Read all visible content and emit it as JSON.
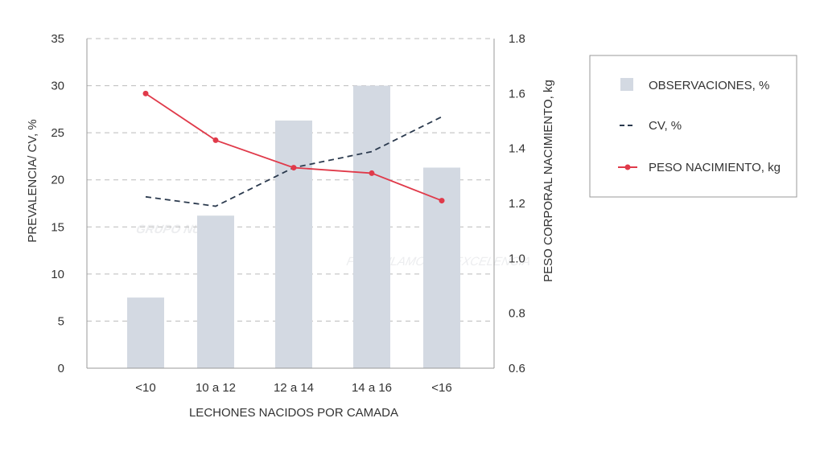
{
  "chart_data": {
    "type": "bar",
    "xlabel": "LECHONES NACIDOS POR CAMADA",
    "ylabel": "PREVALENCIA/ CV, %",
    "y2label": "PESO CORPORAL NACIMIENTO, kg",
    "categories": [
      "<10",
      "10 a 12",
      "12 a 14",
      "14 a 16",
      "<16"
    ],
    "ylim": [
      0,
      35
    ],
    "y2lim": [
      0.6,
      1.8
    ],
    "yticks": [
      "0",
      "5",
      "10",
      "15",
      "20",
      "25",
      "30",
      "35"
    ],
    "y2ticks": [
      "0.6",
      "0.8",
      "1.0",
      "1.2",
      "1.4",
      "1.6",
      "1.8"
    ],
    "grid": true,
    "legend_position": "right",
    "series": [
      {
        "name": "OBSERVACIONES, %",
        "kind": "bar",
        "axis": "left",
        "color": "#d3d9e2",
        "values": [
          7.5,
          16.2,
          26.3,
          30.0,
          21.3
        ]
      },
      {
        "name": "CV, %",
        "kind": "dashed-line",
        "axis": "left",
        "color": "#2b3a4e",
        "values": [
          18.2,
          17.2,
          21.3,
          23.0,
          26.7
        ]
      },
      {
        "name": "PESO NACIMIENTO, kg",
        "kind": "line-marker",
        "axis": "right",
        "color": "#e03a4a",
        "values": [
          1.6,
          1.43,
          1.33,
          1.31,
          1.21
        ]
      }
    ]
  },
  "watermark": "GRUPO NUTEC FORMULAMOS LA EXCELENCIA"
}
